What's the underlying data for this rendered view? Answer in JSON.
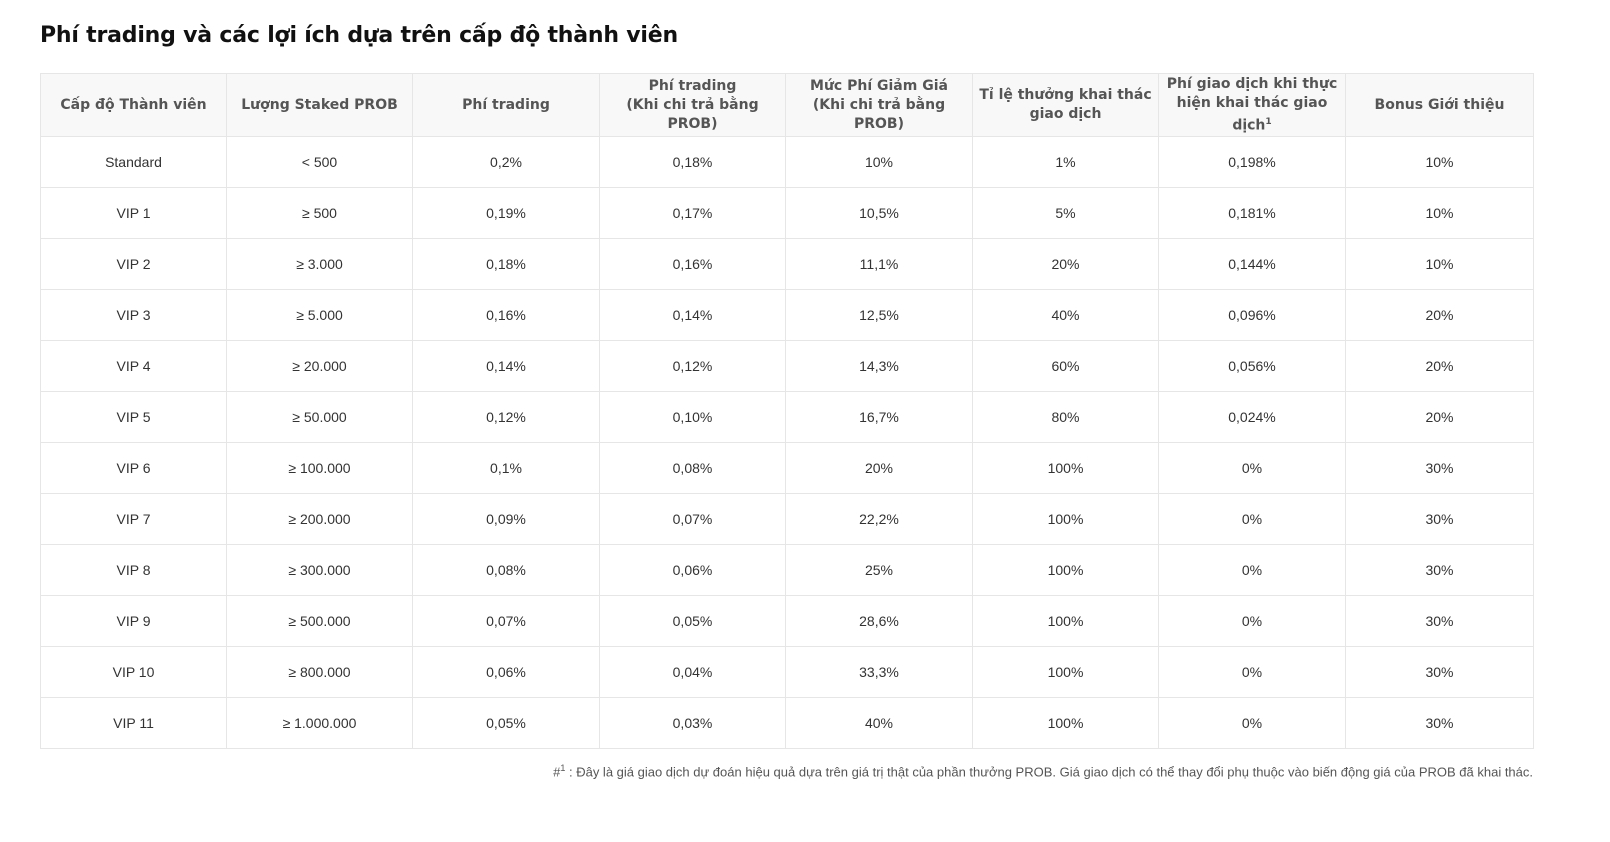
{
  "title": "Phí trading và các lợi ích dựa trên cấp độ thành viên",
  "columns": [
    {
      "l1": "Cấp độ Thành viên",
      "l2": "",
      "sup": ""
    },
    {
      "l1": "Lượng Staked PROB",
      "l2": "",
      "sup": ""
    },
    {
      "l1": "Phí trading",
      "l2": "",
      "sup": ""
    },
    {
      "l1": "Phí trading",
      "l2": "(Khi chi trả bằng PROB)",
      "sup": ""
    },
    {
      "l1": "Mức Phí Giảm Giá",
      "l2": "(Khi chi trả bằng PROB)",
      "sup": ""
    },
    {
      "l1": "Tỉ lệ thưởng khai thác",
      "l2": "giao dịch",
      "sup": ""
    },
    {
      "l1": "Phí giao dịch khi thực",
      "l2": "hiện khai thác giao dịch",
      "sup": "1"
    },
    {
      "l1": "Bonus Giới thiệu",
      "l2": "",
      "sup": ""
    }
  ],
  "rows": [
    [
      "Standard",
      "< 500",
      "0,2%",
      "0,18%",
      "10%",
      "1%",
      "0,198%",
      "10%"
    ],
    [
      "VIP 1",
      "≥ 500",
      "0,19%",
      "0,17%",
      "10,5%",
      "5%",
      "0,181%",
      "10%"
    ],
    [
      "VIP 2",
      "≥ 3.000",
      "0,18%",
      "0,16%",
      "11,1%",
      "20%",
      "0,144%",
      "10%"
    ],
    [
      "VIP 3",
      "≥ 5.000",
      "0,16%",
      "0,14%",
      "12,5%",
      "40%",
      "0,096%",
      "20%"
    ],
    [
      "VIP 4",
      "≥ 20.000",
      "0,14%",
      "0,12%",
      "14,3%",
      "60%",
      "0,056%",
      "20%"
    ],
    [
      "VIP 5",
      "≥ 50.000",
      "0,12%",
      "0,10%",
      "16,7%",
      "80%",
      "0,024%",
      "20%"
    ],
    [
      "VIP 6",
      "≥ 100.000",
      "0,1%",
      "0,08%",
      "20%",
      "100%",
      "0%",
      "30%"
    ],
    [
      "VIP 7",
      "≥ 200.000",
      "0,09%",
      "0,07%",
      "22,2%",
      "100%",
      "0%",
      "30%"
    ],
    [
      "VIP 8",
      "≥ 300.000",
      "0,08%",
      "0,06%",
      "25%",
      "100%",
      "0%",
      "30%"
    ],
    [
      "VIP 9",
      "≥ 500.000",
      "0,07%",
      "0,05%",
      "28,6%",
      "100%",
      "0%",
      "30%"
    ],
    [
      "VIP 10",
      "≥ 800.000",
      "0,06%",
      "0,04%",
      "33,3%",
      "100%",
      "0%",
      "30%"
    ],
    [
      "VIP 11",
      "≥ 1.000.000",
      "0,05%",
      "0,03%",
      "40%",
      "100%",
      "0%",
      "30%"
    ]
  ],
  "footnote": {
    "marker": "#",
    "sup": "1",
    "text": " : Đây là giá giao dịch dự đoán hiệu quả dựa trên giá trị thật của phần thưởng PROB. Giá giao dịch có thể thay đổi phụ thuộc vào biến động giá của PROB đã khai thác."
  },
  "colors": {
    "header_bg": "#f8f8f8",
    "border": "#e6e6e6",
    "title": "#111111",
    "text": "#333333"
  }
}
